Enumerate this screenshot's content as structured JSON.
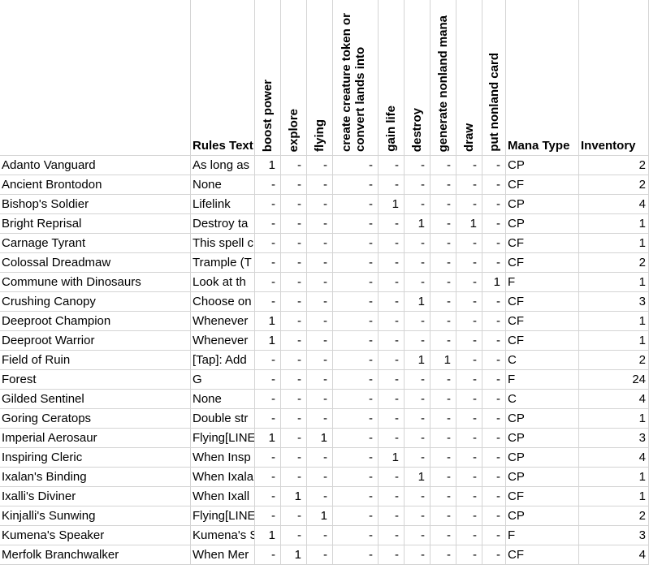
{
  "headers": {
    "name": "",
    "rules": "Rules Text",
    "flags": [
      "boost power",
      "explore",
      "flying",
      "create creature token or convert lands into",
      "gain life",
      "destroy",
      "generate nonland mana",
      "draw",
      "put nonland card"
    ],
    "mana": "Mana Type",
    "inventory": "Inventory"
  },
  "rows": [
    {
      "name": "Adanto Vanguard",
      "rules": "As long as",
      "flags": [
        "1",
        "-",
        "-",
        "-",
        "-",
        "-",
        "-",
        "-",
        "-"
      ],
      "mana": "CP",
      "inventory": "2"
    },
    {
      "name": "Ancient Brontodon",
      "rules": "None",
      "flags": [
        "-",
        "-",
        "-",
        "-",
        "-",
        "-",
        "-",
        "-",
        "-"
      ],
      "mana": "CF",
      "inventory": "2"
    },
    {
      "name": "Bishop's Soldier",
      "rules": "Lifelink",
      "flags": [
        "-",
        "-",
        "-",
        "-",
        "1",
        "-",
        "-",
        "-",
        "-"
      ],
      "mana": "CP",
      "inventory": "4"
    },
    {
      "name": "Bright Reprisal",
      "rules": "Destroy ta",
      "flags": [
        "-",
        "-",
        "-",
        "-",
        "-",
        "1",
        "-",
        "1",
        "-"
      ],
      "mana": "CP",
      "inventory": "1"
    },
    {
      "name": "Carnage Tyrant",
      "rules": "This spell c",
      "flags": [
        "-",
        "-",
        "-",
        "-",
        "-",
        "-",
        "-",
        "-",
        "-"
      ],
      "mana": "CF",
      "inventory": "1"
    },
    {
      "name": "Colossal Dreadmaw",
      "rules": "Trample (T",
      "flags": [
        "-",
        "-",
        "-",
        "-",
        "-",
        "-",
        "-",
        "-",
        "-"
      ],
      "mana": "CF",
      "inventory": "2"
    },
    {
      "name": "Commune with Dinosaurs",
      "rules": "Look at th",
      "flags": [
        "-",
        "-",
        "-",
        "-",
        "-",
        "-",
        "-",
        "-",
        "1"
      ],
      "mana": "F",
      "inventory": "1"
    },
    {
      "name": "Crushing Canopy",
      "rules": "Choose on",
      "flags": [
        "-",
        "-",
        "-",
        "-",
        "-",
        "1",
        "-",
        "-",
        "-"
      ],
      "mana": "CF",
      "inventory": "3"
    },
    {
      "name": "Deeproot Champion",
      "rules": "Whenever",
      "flags": [
        "1",
        "-",
        "-",
        "-",
        "-",
        "-",
        "-",
        "-",
        "-"
      ],
      "mana": "CF",
      "inventory": "1"
    },
    {
      "name": "Deeproot Warrior",
      "rules": "Whenever",
      "flags": [
        "1",
        "-",
        "-",
        "-",
        "-",
        "-",
        "-",
        "-",
        "-"
      ],
      "mana": "CF",
      "inventory": "1"
    },
    {
      "name": "Field of Ruin",
      "rules": "[Tap]: Add",
      "flags": [
        "-",
        "-",
        "-",
        "-",
        "-",
        "1",
        "1",
        "-",
        "-"
      ],
      "mana": "C",
      "inventory": "2"
    },
    {
      "name": "Forest",
      "rules": "G",
      "flags": [
        "-",
        "-",
        "-",
        "-",
        "-",
        "-",
        "-",
        "-",
        "-"
      ],
      "mana": "F",
      "inventory": "24"
    },
    {
      "name": "Gilded Sentinel",
      "rules": "None",
      "flags": [
        "-",
        "-",
        "-",
        "-",
        "-",
        "-",
        "-",
        "-",
        "-"
      ],
      "mana": "C",
      "inventory": "4"
    },
    {
      "name": "Goring Ceratops",
      "rules": "Double str",
      "flags": [
        "-",
        "-",
        "-",
        "-",
        "-",
        "-",
        "-",
        "-",
        "-"
      ],
      "mana": "CP",
      "inventory": "1"
    },
    {
      "name": "Imperial Aerosaur",
      "rules": "Flying[LINE",
      "flags": [
        "1",
        "-",
        "1",
        "-",
        "-",
        "-",
        "-",
        "-",
        "-"
      ],
      "mana": "CP",
      "inventory": "3"
    },
    {
      "name": "Inspiring Cleric",
      "rules": "When Insp",
      "flags": [
        "-",
        "-",
        "-",
        "-",
        "1",
        "-",
        "-",
        "-",
        "-"
      ],
      "mana": "CP",
      "inventory": "4"
    },
    {
      "name": "Ixalan's Binding",
      "rules": "When Ixala",
      "flags": [
        "-",
        "-",
        "-",
        "-",
        "-",
        "1",
        "-",
        "-",
        "-"
      ],
      "mana": "CP",
      "inventory": "1"
    },
    {
      "name": "Ixalli's Diviner",
      "rules": "When Ixall",
      "flags": [
        "-",
        "1",
        "-",
        "-",
        "-",
        "-",
        "-",
        "-",
        "-"
      ],
      "mana": "CF",
      "inventory": "1"
    },
    {
      "name": "Kinjalli's Sunwing",
      "rules": "Flying[LINE",
      "flags": [
        "-",
        "-",
        "1",
        "-",
        "-",
        "-",
        "-",
        "-",
        "-"
      ],
      "mana": "CP",
      "inventory": "2"
    },
    {
      "name": "Kumena's Speaker",
      "rules": "Kumena's S",
      "flags": [
        "1",
        "-",
        "-",
        "-",
        "-",
        "-",
        "-",
        "-",
        "-"
      ],
      "mana": "F",
      "inventory": "3"
    },
    {
      "name": "Merfolk Branchwalker",
      "rules": "When Mer",
      "flags": [
        "-",
        "1",
        "-",
        "-",
        "-",
        "-",
        "-",
        "-",
        "-"
      ],
      "mana": "CF",
      "inventory": "4"
    }
  ]
}
